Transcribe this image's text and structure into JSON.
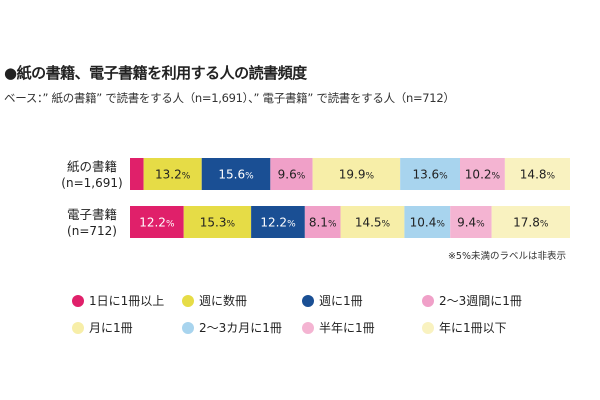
{
  "title": "●紙の書籍、電子書籍を利用する人の読書頻度",
  "subtitle": "ベース：” 紙の書籍” で読書をする人（n=1,691）、” 電子書籍” で読書をする人（n=712）",
  "note": "※5%未満のラベルは非表示",
  "chart_data": {
    "type": "bar",
    "orientation": "horizontal",
    "stacked": true,
    "percent_stacked": true,
    "categories": [
      {
        "name": "紙の書籍",
        "n": "(n=1,691)"
      },
      {
        "name": "電子書籍",
        "n": "(n=712)"
      }
    ],
    "series": [
      {
        "name": "1日に1冊以上",
        "color": "#e0206a",
        "values": [
          3.1,
          12.2
        ],
        "labels": [
          "",
          "12.2"
        ]
      },
      {
        "name": "週に数冊",
        "color": "#e6dc46",
        "values": [
          13.2,
          15.3
        ],
        "labels": [
          "13.2",
          "15.3"
        ]
      },
      {
        "name": "週に1冊",
        "color": "#1a4f94",
        "values": [
          15.6,
          12.2
        ],
        "labels": [
          "15.6",
          "12.2"
        ]
      },
      {
        "name": "2～3週間に1冊",
        "color": "#f0a0c8",
        "values": [
          9.6,
          8.1
        ],
        "labels": [
          "9.6",
          "8.1"
        ]
      },
      {
        "name": "月に1冊",
        "color": "#f7eea8",
        "values": [
          19.9,
          14.5
        ],
        "labels": [
          "19.9",
          "14.5"
        ]
      },
      {
        "name": "2～3カ月に1冊",
        "color": "#a8d4ee",
        "values": [
          13.6,
          10.4
        ],
        "labels": [
          "13.6",
          "10.4"
        ]
      },
      {
        "name": "半年に1冊",
        "color": "#f4b4d2",
        "values": [
          10.2,
          9.4
        ],
        "labels": [
          "10.2",
          "9.4"
        ]
      },
      {
        "name": "年に1冊以下",
        "color": "#f9f2c0",
        "values": [
          14.8,
          17.8
        ],
        "labels": [
          "14.8",
          "17.8"
        ]
      }
    ],
    "label_suffix": "%",
    "legend_position": "bottom",
    "grid": false
  }
}
